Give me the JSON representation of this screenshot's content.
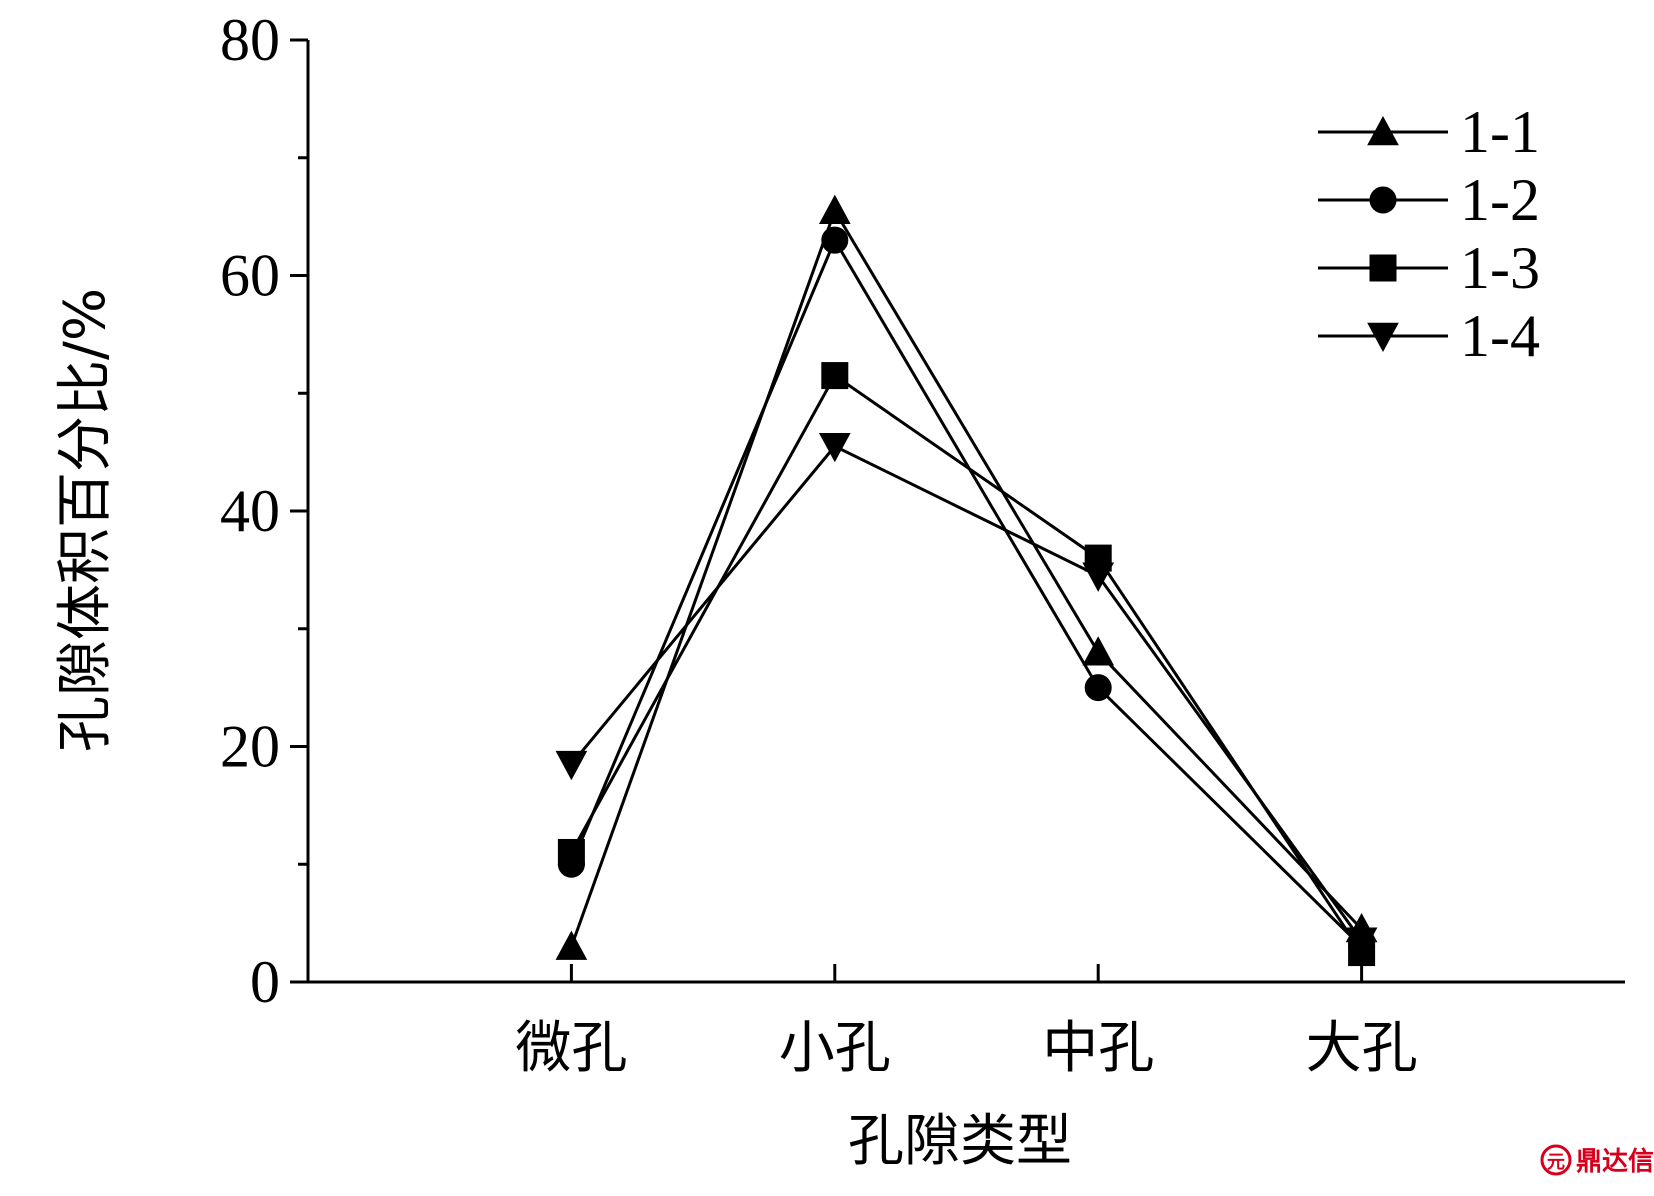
{
  "chart_data": {
    "type": "line",
    "title": "",
    "xlabel": "孔隙类型",
    "ylabel": "孔隙体积百分比/%",
    "categories": [
      "微孔",
      "小孔",
      "中孔",
      "大孔"
    ],
    "ylim": [
      0,
      80
    ],
    "yticks": [
      0,
      20,
      40,
      60,
      80
    ],
    "y_minor_ticks": [
      10,
      30,
      50,
      70
    ],
    "grid": false,
    "legend_position": "top-right",
    "series": [
      {
        "name": "1-1",
        "marker": "triangle-up",
        "values": [
          3,
          65.5,
          28,
          4.5
        ]
      },
      {
        "name": "1-2",
        "marker": "circle",
        "values": [
          10,
          63,
          25,
          3
        ]
      },
      {
        "name": "1-3",
        "marker": "square",
        "values": [
          11,
          51.5,
          36,
          2.5
        ]
      },
      {
        "name": "1-4",
        "marker": "triangle-down",
        "values": [
          18.5,
          45.5,
          34.5,
          3.5
        ]
      }
    ]
  },
  "watermark": {
    "text": "鼎达信",
    "logo_glyph": "元",
    "color": "#d6001c"
  }
}
